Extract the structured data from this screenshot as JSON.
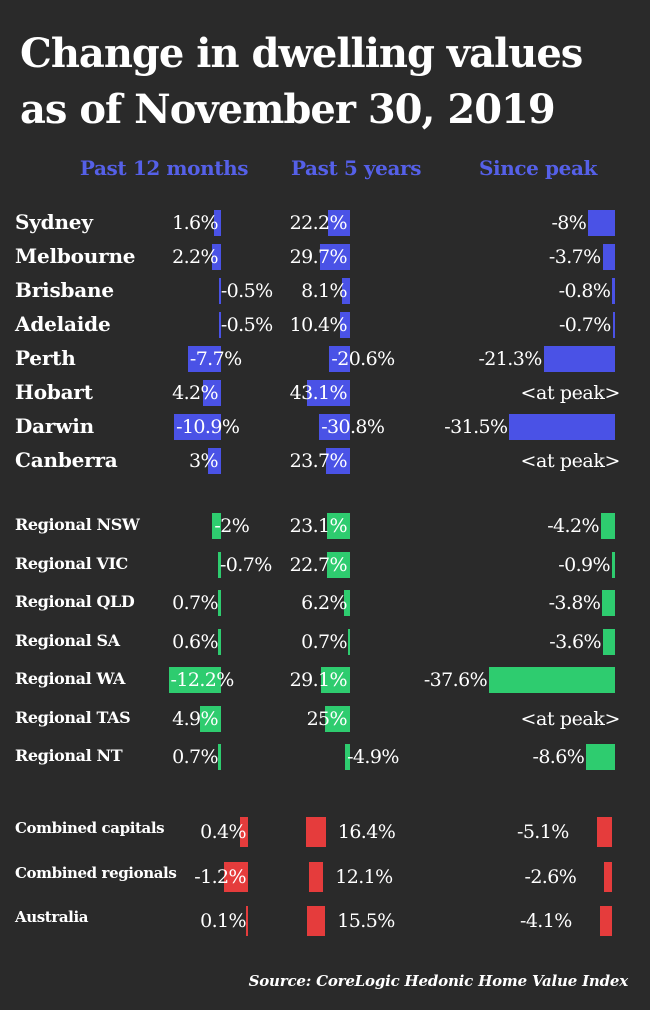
{
  "title": [
    "Change in dwelling values",
    "as of November 30, 2019"
  ],
  "source": "Source: CoreLogic Hedonic Home Value Index",
  "colors": {
    "background": "#2a2a2a",
    "capitals": "#4a52e6",
    "regionals": "#2ecc6f",
    "combined": "#e53c3c",
    "header": "#5560e8"
  },
  "chart_data": {
    "type": "bar",
    "columns": [
      "Past 12 months",
      "Past 5 years",
      "Since peak"
    ],
    "groups": [
      {
        "name": "capitals",
        "rows": [
          {
            "label": "Sydney",
            "values": [
              "1.6%",
              "22.2%",
              "-8%"
            ]
          },
          {
            "label": "Melbourne",
            "values": [
              "2.2%",
              "29.7%",
              "-3.7%"
            ]
          },
          {
            "label": "Brisbane",
            "values": [
              "-0.5%",
              "8.1%",
              "-0.8%"
            ]
          },
          {
            "label": "Adelaide",
            "values": [
              "-0.5%",
              "10.4%",
              "-0.7%"
            ]
          },
          {
            "label": "Perth",
            "values": [
              "-7.7%",
              "-20.6%",
              "-21.3%"
            ]
          },
          {
            "label": "Hobart",
            "values": [
              "4.2%",
              "43.1%",
              "<at peak>"
            ]
          },
          {
            "label": "Darwin",
            "values": [
              "-10.9%",
              "-30.8%",
              "-31.5%"
            ]
          },
          {
            "label": "Canberra",
            "values": [
              "3%",
              "23.7%",
              "<at peak>"
            ]
          }
        ]
      },
      {
        "name": "regionals",
        "rows": [
          {
            "label": "Regional NSW",
            "values": [
              "-2%",
              "23.1%",
              "-4.2%"
            ]
          },
          {
            "label": "Regional VIC",
            "values": [
              "-0.7%",
              "22.7%",
              "-0.9%"
            ]
          },
          {
            "label": "Regional QLD",
            "values": [
              "0.7%",
              "6.2%",
              "-3.8%"
            ]
          },
          {
            "label": "Regional SA",
            "values": [
              "0.6%",
              "0.7%",
              "-3.6%"
            ]
          },
          {
            "label": "Regional WA",
            "values": [
              "-12.2%",
              "29.1%",
              "-37.6%"
            ]
          },
          {
            "label": "Regional TAS",
            "values": [
              "4.9%",
              "25%",
              "<at peak>"
            ]
          },
          {
            "label": "Regional NT",
            "values": [
              "0.7%",
              "-4.9%",
              "-8.6%"
            ]
          }
        ]
      },
      {
        "name": "combined",
        "rows": [
          {
            "label": "Combined capitals",
            "values": [
              "0.4%",
              "16.4%",
              "-5.1%"
            ]
          },
          {
            "label": "Combined regionals",
            "values": [
              "-1.2%",
              "12.1%",
              "-2.6%"
            ]
          },
          {
            "label": "Australia",
            "values": [
              "0.1%",
              "15.5%",
              "-4.1%"
            ]
          }
        ]
      }
    ]
  }
}
